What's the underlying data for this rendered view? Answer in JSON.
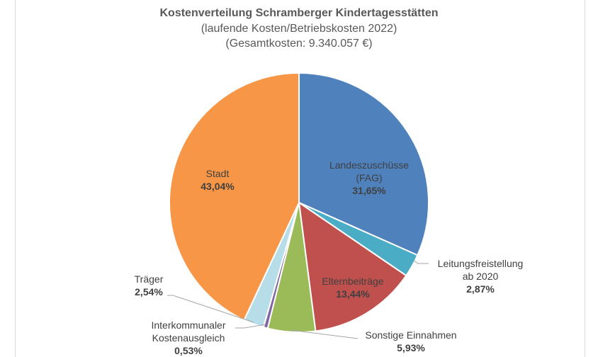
{
  "chart_data": {
    "type": "pie",
    "title": "Kostenverteilung Schramberger Kindertagesstätten",
    "subtitle": "(laufende Kosten/Betriebskosten 2022)",
    "subtitle2": "(Gesamtkosten: 9.340.057 €)",
    "slices": [
      {
        "name": "Landeszuschüsse",
        "name2": "(FAG)",
        "value": 31.65,
        "label": "31,65%",
        "color": "#4f81bd"
      },
      {
        "name": "Leitungsfreistellung",
        "name2": "ab 2020",
        "value": 2.87,
        "label": "2,87%",
        "color": "#4bacc6"
      },
      {
        "name": "Elternbeiträge",
        "value": 13.44,
        "label": "13,44%",
        "color": "#c0504d"
      },
      {
        "name": "Sonstige Einnahmen",
        "value": 5.93,
        "label": "5,93%",
        "color": "#9bbb59"
      },
      {
        "name": "Interkommunaler",
        "name2": "Kostenausgleich",
        "value": 0.53,
        "label": "0,53%",
        "color": "#8064a2"
      },
      {
        "name": "Träger",
        "value": 2.54,
        "label": "2,54%",
        "color": "#b7dee8"
      },
      {
        "name": "Stadt",
        "value": 43.04,
        "label": "43,04%",
        "color": "#f79646"
      }
    ]
  }
}
